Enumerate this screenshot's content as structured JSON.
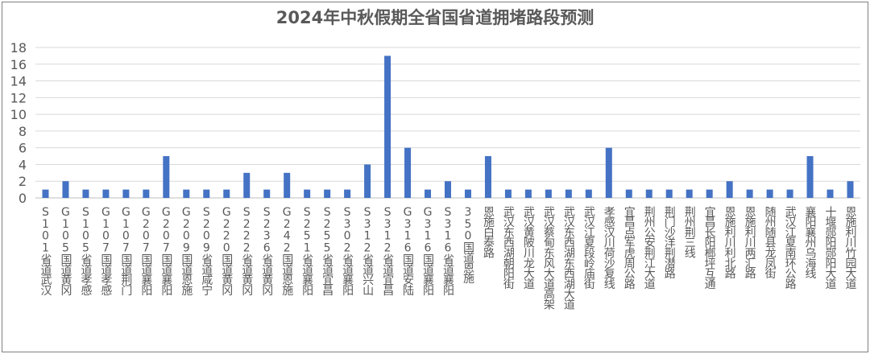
{
  "chart_data": {
    "type": "bar",
    "title": "2024年中秋假期全省国省道拥堵路段预测",
    "xlabel": "",
    "ylabel": "",
    "ylim": [
      0,
      18
    ],
    "yticks": [
      0,
      2,
      4,
      6,
      8,
      10,
      12,
      14,
      16,
      18
    ],
    "grid": true,
    "legend": "none",
    "bar_color": "#4472c4",
    "categories": [
      "S101省道武汉",
      "G105国道黄冈",
      "S105省道孝感",
      "G107国道孝感",
      "G107国道荆门",
      "G207国道襄阳",
      "G207国道襄阳",
      "G209国道恩施",
      "S209省道咸宁",
      "G220国道黄冈",
      "S222省道黄冈",
      "S236省道黄冈",
      "G242国道恩施",
      "S251省道襄阳",
      "S255省道宜昌",
      "S302省道襄阳",
      "S312省道兴山",
      "S312省道宜昌",
      "G316国道安陆",
      "G316国道襄阳",
      "S316省道襄阳",
      "350国道恩施",
      "恩施白泰路",
      "武汉东西湖朝阳街",
      "武汉黄陂川龙大道",
      "武汉蔡甸东风大道高架",
      "武汉东西湖东西湖大道",
      "武汉江夏段岭庙街",
      "孝感汉川荷沙复线",
      "宜昌点军虎周公路",
      "荆州公安荆江大道",
      "荆门沙洋荆潜路",
      "荆州荆三线",
      "宜昌长阳榔坪互通",
      "恩施利川利北路",
      "恩施利川两汇路",
      "随州随县龙凤街",
      "武汉江夏南环公路",
      "襄阳襄州乌海线",
      "十堰郧阳郧阳大道",
      "恩施利川竹园大道"
    ],
    "values": [
      1,
      2,
      1,
      1,
      1,
      1,
      5,
      1,
      1,
      1,
      3,
      1,
      3,
      1,
      1,
      1,
      4,
      17,
      6,
      1,
      2,
      1,
      5,
      1,
      1,
      1,
      1,
      1,
      6,
      1,
      1,
      1,
      1,
      1,
      2,
      1,
      1,
      1,
      5,
      1,
      2
    ]
  }
}
